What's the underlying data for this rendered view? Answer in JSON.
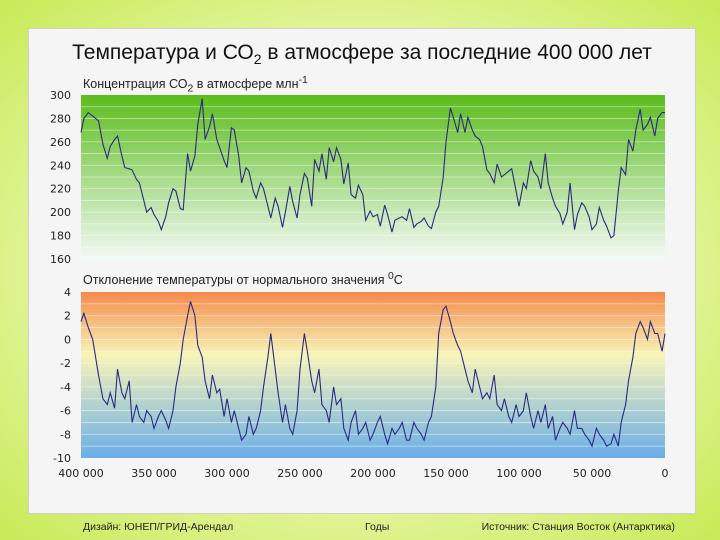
{
  "title": {
    "before": "Температура и СО",
    "sub": "2",
    "after": " в атмосфере за последние 400 000 лет"
  },
  "footer": {
    "left": "Дизайн: ЮНЕП/ГРИД-Арендал",
    "middle": "Годы",
    "right": "Источник: Станция Восток (Антарктика)"
  },
  "chart_data": [
    {
      "type": "line",
      "label": {
        "before": "Концентрация СО",
        "sub": "2",
        "after": " в атмосфере  млн",
        "sup": "-1"
      },
      "x": [
        400000,
        398000,
        395000,
        392000,
        390000,
        388000,
        385000,
        382000,
        380000,
        377000,
        375000,
        372000,
        370000,
        367000,
        365000,
        362000,
        360000,
        357000,
        355000,
        352000,
        350000,
        347000,
        345000,
        342000,
        340000,
        337000,
        335000,
        332000,
        330000,
        327000,
        325000,
        322000,
        320000,
        317000,
        315000,
        312000,
        310000,
        307000,
        305000,
        302000,
        300000,
        297000,
        295000,
        292000,
        290000,
        287000,
        285000,
        282000,
        280000,
        277000,
        275000,
        272000,
        270000,
        267000,
        265000,
        262000,
        260000,
        257000,
        255000,
        252000,
        250000,
        247000,
        245000,
        242000,
        240000,
        237000,
        235000,
        232000,
        230000,
        227000,
        225000,
        222000,
        220000,
        217000,
        215000,
        212000,
        210000,
        207000,
        205000,
        202000,
        200000,
        197000,
        195000,
        192000,
        190000,
        187000,
        185000,
        182000,
        180000,
        177000,
        175000,
        172000,
        170000,
        167000,
        165000,
        162000,
        160000,
        157000,
        155000,
        152000,
        150000,
        147000,
        145000,
        142000,
        140000,
        137000,
        135000,
        132000,
        130000,
        127000,
        125000,
        122000,
        120000,
        117000,
        115000,
        112000,
        110000,
        107000,
        105000,
        102000,
        100000,
        97000,
        95000,
        92000,
        90000,
        87000,
        85000,
        82000,
        80000,
        77000,
        75000,
        72000,
        70000,
        67000,
        65000,
        62000,
        60000,
        57000,
        55000,
        52000,
        50000,
        47000,
        45000,
        42000,
        40000,
        37000,
        35000,
        32000,
        30000,
        27000,
        25000,
        22000,
        20000,
        17000,
        15000,
        12000,
        10000,
        7000,
        5000,
        2000,
        0
      ],
      "series": [
        {
          "name": "CO2",
          "values": [
            268,
            280,
            285,
            282,
            280,
            278,
            258,
            246,
            256,
            262,
            265,
            248,
            238,
            237,
            236,
            228,
            225,
            210,
            200,
            204,
            198,
            192,
            185,
            196,
            208,
            220,
            218,
            203,
            202,
            250,
            235,
            248,
            275,
            297,
            262,
            273,
            284,
            262,
            255,
            244,
            238,
            272,
            270,
            248,
            225,
            238,
            235,
            218,
            212,
            225,
            220,
            205,
            195,
            212,
            205,
            187,
            200,
            222,
            209,
            195,
            215,
            233,
            229,
            205,
            245,
            235,
            250,
            228,
            255,
            243,
            255,
            245,
            224,
            242,
            215,
            212,
            223,
            215,
            193,
            201,
            196,
            198,
            188,
            206,
            198,
            183,
            193,
            195,
            196,
            193,
            203,
            187,
            190,
            192,
            195,
            188,
            186,
            200,
            205,
            229,
            260,
            289,
            281,
            268,
            284,
            268,
            281,
            270,
            265,
            262,
            256,
            236,
            233,
            225,
            241,
            230,
            232,
            235,
            237,
            218,
            205,
            225,
            220,
            244,
            235,
            230,
            220,
            250,
            225,
            212,
            205,
            199,
            190,
            200,
            225,
            185,
            198,
            208,
            205,
            196,
            185,
            190,
            204,
            193,
            188,
            178,
            180,
            218,
            238,
            232,
            262,
            252,
            270,
            288,
            270,
            275,
            281,
            265,
            280,
            285,
            285
          ]
        }
      ],
      "ylim": [
        160,
        300
      ],
      "yticks": [
        300,
        280,
        260,
        240,
        220,
        200,
        180,
        160
      ],
      "grid": true
    },
    {
      "type": "line",
      "label": {
        "before": "Отклонение температуры от нормального значения  ",
        "sup": "0",
        "after": "C"
      },
      "x": [
        400000,
        398000,
        395000,
        392000,
        390000,
        388000,
        385000,
        382000,
        380000,
        377000,
        375000,
        372000,
        370000,
        367000,
        365000,
        362000,
        360000,
        357000,
        355000,
        352000,
        350000,
        347000,
        345000,
        342000,
        340000,
        337000,
        335000,
        332000,
        330000,
        327000,
        325000,
        322000,
        320000,
        317000,
        315000,
        312000,
        310000,
        307000,
        305000,
        302000,
        300000,
        297000,
        295000,
        292000,
        290000,
        287000,
        285000,
        282000,
        280000,
        277000,
        275000,
        272000,
        270000,
        267000,
        265000,
        262000,
        260000,
        257000,
        255000,
        252000,
        250000,
        247000,
        245000,
        242000,
        240000,
        237000,
        235000,
        232000,
        230000,
        227000,
        225000,
        222000,
        220000,
        217000,
        215000,
        212000,
        210000,
        207000,
        205000,
        202000,
        200000,
        197000,
        195000,
        192000,
        190000,
        187000,
        185000,
        182000,
        180000,
        177000,
        175000,
        172000,
        170000,
        167000,
        165000,
        162000,
        160000,
        157000,
        155000,
        152000,
        150000,
        147000,
        145000,
        142000,
        140000,
        137000,
        135000,
        132000,
        130000,
        127000,
        125000,
        122000,
        120000,
        117000,
        115000,
        112000,
        110000,
        107000,
        105000,
        102000,
        100000,
        97000,
        95000,
        92000,
        90000,
        87000,
        85000,
        82000,
        80000,
        77000,
        75000,
        72000,
        70000,
        67000,
        65000,
        62000,
        60000,
        57000,
        55000,
        52000,
        50000,
        47000,
        45000,
        42000,
        40000,
        37000,
        35000,
        32000,
        30000,
        27000,
        25000,
        22000,
        20000,
        17000,
        15000,
        12000,
        10000,
        7000,
        5000,
        2000,
        0
      ],
      "series": [
        {
          "name": "Temperature",
          "values": [
            1.5,
            2.2,
            1.0,
            0,
            -1.5,
            -3.0,
            -5.0,
            -5.5,
            -4.5,
            -5.8,
            -2.5,
            -4.5,
            -5.0,
            -3.5,
            -7.0,
            -5.5,
            -6.5,
            -7.0,
            -6.0,
            -6.5,
            -7.5,
            -6.5,
            -6.0,
            -6.8,
            -7.5,
            -6.0,
            -4.0,
            -2.0,
            0.0,
            2.0,
            3.2,
            2.0,
            -0.5,
            -1.5,
            -3.5,
            -5.0,
            -3.0,
            -4.5,
            -4.2,
            -6.5,
            -5.0,
            -7.0,
            -6.0,
            -7.5,
            -8.5,
            -8.0,
            -6.5,
            -8.0,
            -7.5,
            -6.0,
            -4.0,
            -1.5,
            0.5,
            -2.5,
            -4.5,
            -7.0,
            -5.5,
            -7.5,
            -8.0,
            -6.0,
            -2.5,
            0.5,
            -1.0,
            -3.5,
            -4.5,
            -2.5,
            -5.5,
            -6.0,
            -7.0,
            -4.0,
            -5.5,
            -5.0,
            -7.5,
            -8.5,
            -7.0,
            -6.0,
            -8.0,
            -7.5,
            -7.0,
            -8.5,
            -8.0,
            -7.0,
            -6.5,
            -8.0,
            -8.8,
            -7.5,
            -8.0,
            -7.5,
            -7.0,
            -8.5,
            -8.5,
            -7.0,
            -7.5,
            -8.0,
            -8.5,
            -7.0,
            -6.5,
            -4.0,
            0.5,
            2.5,
            2.8,
            1.5,
            0.5,
            -0.5,
            -1.0,
            -2.5,
            -3.5,
            -4.5,
            -2.5,
            -4.0,
            -5.0,
            -4.5,
            -5.0,
            -3.0,
            -5.5,
            -6.0,
            -5.0,
            -6.5,
            -7.0,
            -5.5,
            -6.5,
            -6.0,
            -4.5,
            -6.5,
            -7.5,
            -6.0,
            -7.0,
            -5.5,
            -7.5,
            -6.5,
            -8.5,
            -7.5,
            -7.0,
            -7.5,
            -8.0,
            -6.0,
            -7.5,
            -7.5,
            -8.0,
            -8.5,
            -9.0,
            -7.5,
            -8.0,
            -8.5,
            -9.0,
            -8.8,
            -8.0,
            -9.0,
            -7.0,
            -5.5,
            -3.5,
            -1.5,
            0.5,
            1.5,
            1.0,
            0.0,
            1.5,
            0.5,
            0.5,
            -1.0,
            0.5
          ]
        }
      ],
      "ylim": [
        -10,
        4
      ],
      "yticks": [
        4,
        2,
        0,
        -2,
        -4,
        -6,
        -8,
        -10
      ],
      "grid": true
    }
  ],
  "xaxis": {
    "ticks": [
      400000,
      350000,
      300000,
      250000,
      200000,
      150000,
      100000,
      50000,
      0
    ],
    "tick_labels": [
      "400 000",
      "350 000",
      "300 000",
      "250 000",
      "200 000",
      "150 000",
      "100 000",
      "50 000",
      "0"
    ],
    "reversed": true
  },
  "colors": {
    "co2_top": "#5cbc1c",
    "co2_bottom": "#f2faf5",
    "temp_top": "#f48a4a",
    "temp_mid": "#f8f4b8",
    "temp_bottom": "#6aaee8",
    "line": "#2a2a80"
  }
}
